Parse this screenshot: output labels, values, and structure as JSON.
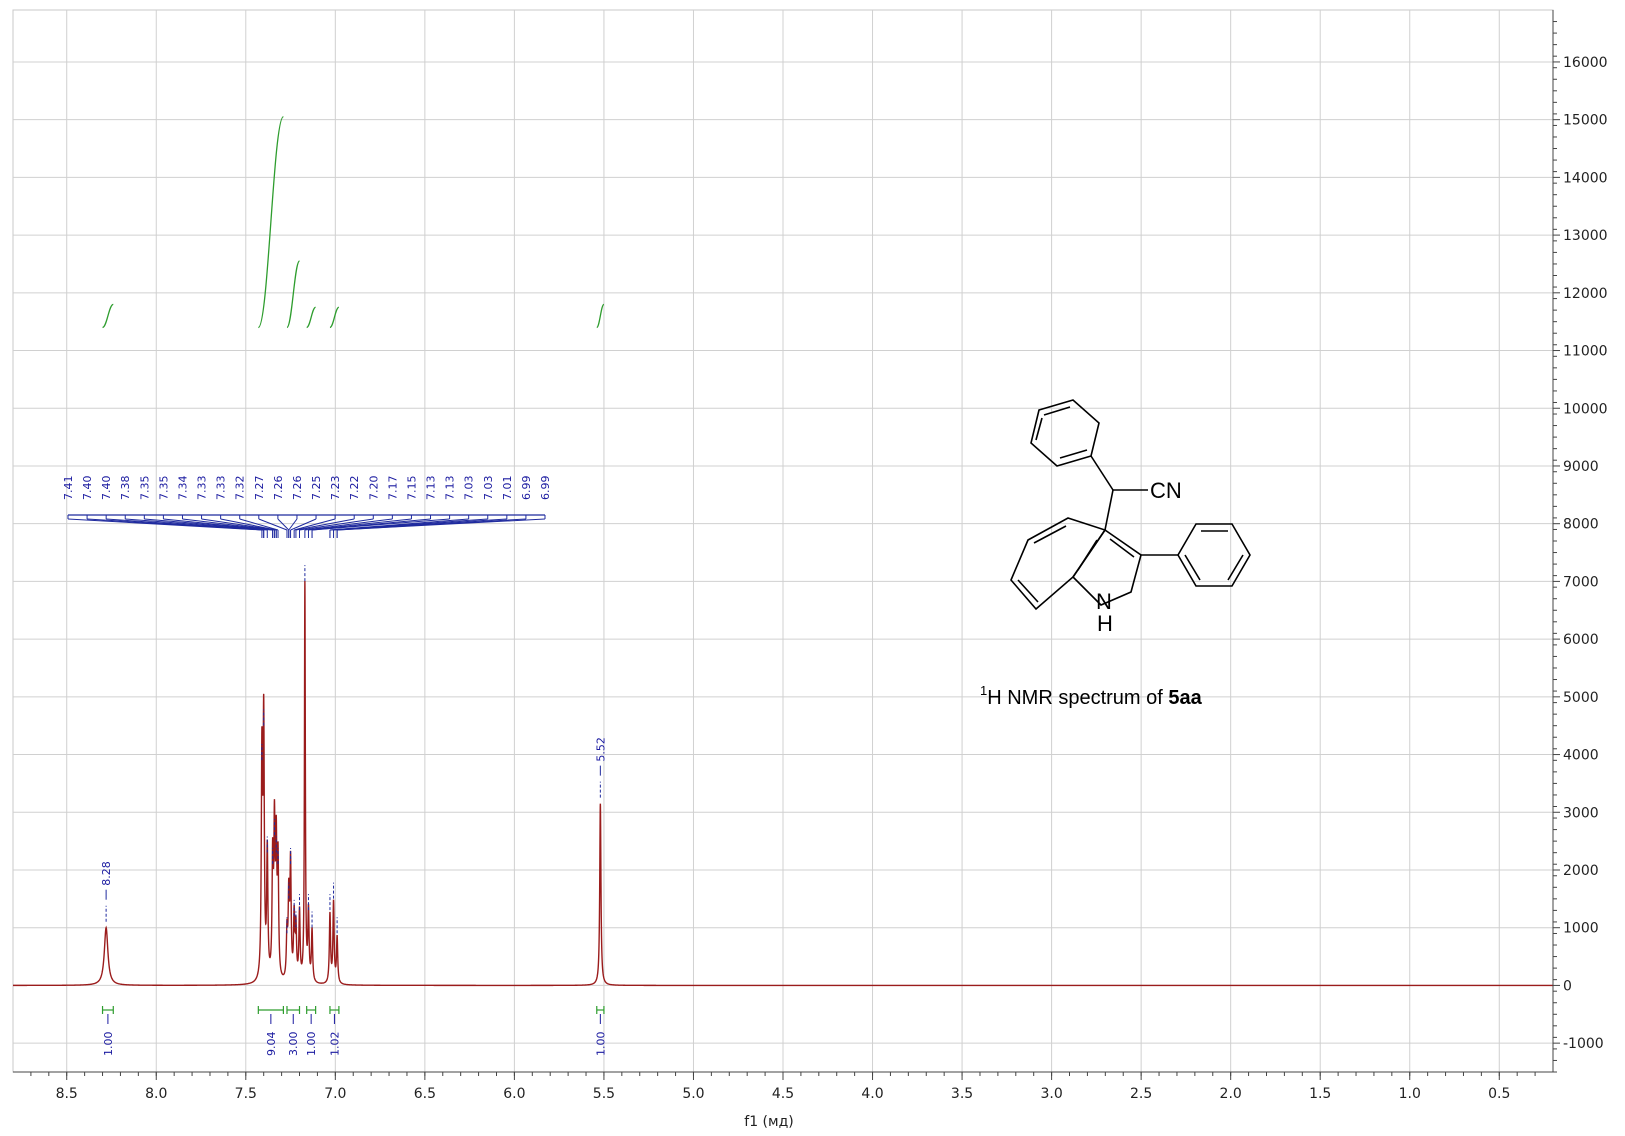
{
  "chart_data": {
    "type": "line",
    "title": "H NMR spectrum of 5aa",
    "title_parts": {
      "superscript": "1",
      "nucleus": "H NMR spectrum of ",
      "compound": "5aa"
    },
    "xlabel": "f1 (мд)",
    "ylabel": "",
    "xlim": [
      8.8,
      0.2
    ],
    "ylim": [
      -1500,
      16900
    ],
    "x_reversed": true,
    "grid": true,
    "x_ticks": [
      "8.5",
      "8.0",
      "7.5",
      "7.0",
      "6.5",
      "6.0",
      "5.5",
      "5.0",
      "4.5",
      "4.0",
      "3.5",
      "3.0",
      "2.5",
      "2.0",
      "1.5",
      "1.0",
      "0.5"
    ],
    "y_ticks": [
      "-1000",
      "0",
      "1000",
      "2000",
      "3000",
      "4000",
      "5000",
      "6000",
      "7000",
      "8000",
      "9000",
      "10000",
      "11000",
      "12000",
      "13000",
      "14000",
      "15000",
      "16000"
    ],
    "series": [
      {
        "peaks": [
          {
            "ppm": 8.28,
            "height": 1000,
            "width": 0.012
          },
          {
            "ppm": 7.41,
            "height": 3800,
            "width": 0.004
          },
          {
            "ppm": 7.4,
            "height": 4400,
            "width": 0.004
          },
          {
            "ppm": 7.38,
            "height": 2200,
            "width": 0.004
          },
          {
            "ppm": 7.35,
            "height": 2000,
            "width": 0.004
          },
          {
            "ppm": 7.34,
            "height": 2500,
            "width": 0.004
          },
          {
            "ppm": 7.33,
            "height": 2200,
            "width": 0.004
          },
          {
            "ppm": 7.32,
            "height": 2000,
            "width": 0.004
          },
          {
            "ppm": 7.27,
            "height": 800,
            "width": 0.004
          },
          {
            "ppm": 7.26,
            "height": 1400,
            "width": 0.004
          },
          {
            "ppm": 7.25,
            "height": 2000,
            "width": 0.004
          },
          {
            "ppm": 7.23,
            "height": 1100,
            "width": 0.004
          },
          {
            "ppm": 7.22,
            "height": 900,
            "width": 0.004
          },
          {
            "ppm": 7.2,
            "height": 1200,
            "width": 0.004
          },
          {
            "ppm": 7.17,
            "height": 6900,
            "width": 0.003
          },
          {
            "ppm": 7.15,
            "height": 1200,
            "width": 0.004
          },
          {
            "ppm": 7.13,
            "height": 900,
            "width": 0.004
          },
          {
            "ppm": 7.03,
            "height": 1200,
            "width": 0.004
          },
          {
            "ppm": 7.01,
            "height": 1400,
            "width": 0.004
          },
          {
            "ppm": 6.99,
            "height": 800,
            "width": 0.004
          },
          {
            "ppm": 5.52,
            "height": 3150,
            "width": 0.004
          }
        ]
      }
    ],
    "peak_labels": [
      "7.41",
      "7.40",
      "7.40",
      "7.38",
      "7.35",
      "7.35",
      "7.34",
      "7.33",
      "7.33",
      "7.32",
      "7.27",
      "7.26",
      "7.26",
      "7.25",
      "7.23",
      "7.22",
      "7.20",
      "7.17",
      "7.15",
      "7.13",
      "7.13",
      "7.03",
      "7.03",
      "7.01",
      "6.99",
      "6.99"
    ],
    "peak_label_ppm": [
      7.41,
      7.4,
      7.4,
      7.38,
      7.35,
      7.35,
      7.34,
      7.33,
      7.33,
      7.32,
      7.27,
      7.26,
      7.26,
      7.25,
      7.23,
      7.22,
      7.2,
      7.17,
      7.15,
      7.13,
      7.13,
      7.03,
      7.03,
      7.01,
      6.99,
      6.99
    ],
    "single_peak_labels": [
      {
        "label": "8.28",
        "ppm": 8.28
      },
      {
        "label": "5.52",
        "ppm": 5.52
      }
    ],
    "integrals": [
      {
        "label": "1.00",
        "from": 8.3,
        "to": 8.24,
        "curve_low": 11400,
        "curve_high": 11800
      },
      {
        "label": "9.04",
        "from": 7.43,
        "to": 7.29,
        "curve_low": 11400,
        "curve_high": 15050
      },
      {
        "label": "3.00",
        "from": 7.27,
        "to": 7.2,
        "curve_low": 11400,
        "curve_high": 12550
      },
      {
        "label": "1.00",
        "from": 7.16,
        "to": 7.11,
        "curve_low": 11400,
        "curve_high": 11750
      },
      {
        "label": "1.02",
        "from": 7.03,
        "to": 6.98,
        "curve_low": 11400,
        "curve_high": 11750
      },
      {
        "label": "1.00",
        "from": 5.54,
        "to": 5.5,
        "curve_low": 11400,
        "curve_high": 11800
      }
    ],
    "colors": {
      "spectrum": "#9b1c1c",
      "peak_marker": "#1f2a9e",
      "integral_curve": "#2e9d2e",
      "integral_label": "#1a1aa0",
      "grid": "#d0d0d0",
      "axis": "#444444"
    }
  },
  "structure": {
    "labels": {
      "cn": "CN",
      "n": "N",
      "h": "H"
    }
  }
}
